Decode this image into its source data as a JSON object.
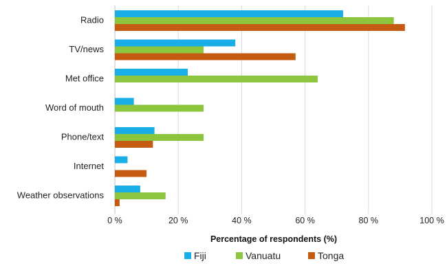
{
  "chart_data": {
    "type": "bar",
    "orientation": "horizontal",
    "title": "",
    "xlabel": "Percentage of respondents (%)",
    "ylabel": "",
    "xlim": [
      0,
      100
    ],
    "x_ticks": [
      0,
      20,
      40,
      60,
      80,
      100
    ],
    "x_tick_labels": [
      "0 %",
      "20 %",
      "40 %",
      "60 %",
      "80 %",
      "100 %"
    ],
    "grid": "vertical",
    "legend_position": "bottom",
    "categories": [
      "Radio",
      "TV/news",
      "Met office",
      "Word of mouth",
      "Phone/text",
      "Internet",
      "Weather observations"
    ],
    "series": [
      {
        "name": "Fiji",
        "color": "#1aaee8",
        "values": [
          72,
          38,
          23,
          6,
          12.5,
          4,
          8
        ]
      },
      {
        "name": "Vanuatu",
        "color": "#8cc63f",
        "values": [
          88,
          28,
          64,
          28,
          28,
          null,
          16
        ]
      },
      {
        "name": "Tonga",
        "color": "#c55a11",
        "values": [
          91.5,
          57,
          null,
          null,
          12,
          10,
          1.5
        ]
      }
    ]
  }
}
